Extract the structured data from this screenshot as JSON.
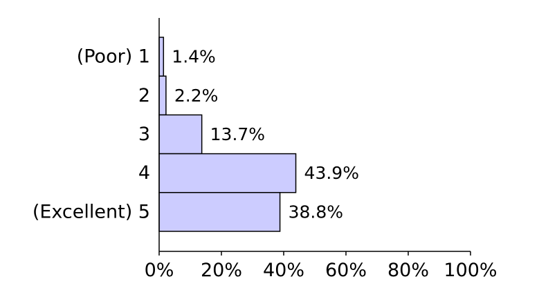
{
  "chart_data": {
    "type": "bar",
    "orientation": "horizontal",
    "categories": [
      "(Poor) 1",
      "2",
      "3",
      "4",
      "(Excellent) 5"
    ],
    "values": [
      1.4,
      2.2,
      13.7,
      43.9,
      38.8
    ],
    "data_labels": [
      "1.4%",
      "2.2%",
      "13.7%",
      "43.9%",
      "38.8%"
    ],
    "xlim": [
      0,
      100
    ],
    "x_ticks": [
      0,
      20,
      40,
      60,
      80,
      100
    ],
    "x_tick_labels": [
      "0%",
      "20%",
      "40%",
      "60%",
      "80%",
      "100%"
    ],
    "bar_color": "#ccccff",
    "edge_color": "#000000",
    "grid": false
  }
}
